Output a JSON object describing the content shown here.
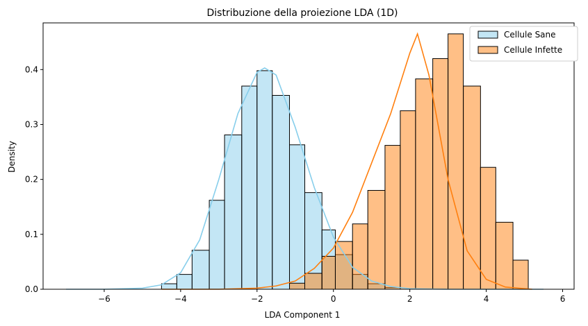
{
  "chart_data": {
    "type": "histogram",
    "title": "Distribuzione della proiezione LDA (1D)",
    "xlabel": "LDA Component 1",
    "ylabel": "Density",
    "xlim": [
      -7.6,
      6.3
    ],
    "ylim": [
      0,
      0.485
    ],
    "xticks": [
      -6,
      -4,
      -2,
      0,
      2,
      4,
      6
    ],
    "xtick_labels": [
      "−6",
      "−4",
      "−2",
      "0",
      "2",
      "4",
      "6"
    ],
    "yticks": [
      0.0,
      0.1,
      0.2,
      0.3,
      0.4
    ],
    "ytick_labels": [
      "0.0",
      "0.1",
      "0.2",
      "0.3",
      "0.4"
    ],
    "legend_position": "top-right",
    "grid": false,
    "series": [
      {
        "name": "Cellule Sane",
        "fill": "#87CEEB",
        "line": "#87CEEB",
        "bins": [
          [
            -4.5,
            -4.1,
            0.01
          ],
          [
            -4.1,
            -3.7,
            0.027
          ],
          [
            -3.7,
            -3.25,
            0.071
          ],
          [
            -3.25,
            -2.85,
            0.162
          ],
          [
            -2.85,
            -2.4,
            0.281
          ],
          [
            -2.4,
            -2.0,
            0.37
          ],
          [
            -2.0,
            -1.6,
            0.398
          ],
          [
            -1.6,
            -1.15,
            0.353
          ],
          [
            -1.15,
            -0.75,
            0.263
          ],
          [
            -0.75,
            -0.3,
            0.176
          ],
          [
            -0.3,
            0.05,
            0.108
          ],
          [
            0.05,
            0.5,
            0.063
          ],
          [
            0.5,
            0.9,
            0.027
          ],
          [
            0.9,
            1.35,
            0.01
          ],
          [
            1.35,
            1.75,
            0.003
          ]
        ],
        "kde": [
          [
            -7.0,
            0.0
          ],
          [
            -6.0,
            0.0
          ],
          [
            -5.0,
            0.002
          ],
          [
            -4.5,
            0.008
          ],
          [
            -4.0,
            0.03
          ],
          [
            -3.5,
            0.09
          ],
          [
            -3.0,
            0.2
          ],
          [
            -2.5,
            0.32
          ],
          [
            -2.0,
            0.395
          ],
          [
            -1.8,
            0.403
          ],
          [
            -1.5,
            0.39
          ],
          [
            -1.0,
            0.295
          ],
          [
            -0.5,
            0.185
          ],
          [
            0.0,
            0.095
          ],
          [
            0.5,
            0.04
          ],
          [
            1.0,
            0.015
          ],
          [
            1.5,
            0.005
          ],
          [
            2.0,
            0.001
          ],
          [
            3.0,
            0.0
          ],
          [
            4.0,
            0.0
          ],
          [
            5.5,
            0.0
          ]
        ]
      },
      {
        "name": "Cellule Infette",
        "fill": "#FF7F0E",
        "line": "#FF7F0E",
        "bins": [
          [
            -1.15,
            -0.75,
            0.011
          ],
          [
            -0.75,
            -0.3,
            0.029
          ],
          [
            -0.3,
            0.05,
            0.06
          ],
          [
            0.05,
            0.5,
            0.087
          ],
          [
            0.5,
            0.9,
            0.119
          ],
          [
            0.9,
            1.35,
            0.18
          ],
          [
            1.35,
            1.75,
            0.262
          ],
          [
            1.75,
            2.15,
            0.325
          ],
          [
            2.15,
            2.6,
            0.383
          ],
          [
            2.6,
            3.0,
            0.42
          ],
          [
            3.0,
            3.4,
            0.465
          ],
          [
            3.4,
            3.85,
            0.37
          ],
          [
            3.85,
            4.25,
            0.222
          ],
          [
            4.25,
            4.7,
            0.122
          ],
          [
            4.7,
            5.1,
            0.053
          ]
        ],
        "kde": [
          [
            -4.5,
            0.0
          ],
          [
            -3.0,
            0.0
          ],
          [
            -2.0,
            0.002
          ],
          [
            -1.5,
            0.006
          ],
          [
            -1.0,
            0.015
          ],
          [
            -0.5,
            0.038
          ],
          [
            0.0,
            0.075
          ],
          [
            0.5,
            0.14
          ],
          [
            1.0,
            0.23
          ],
          [
            1.5,
            0.32
          ],
          [
            2.0,
            0.43
          ],
          [
            2.2,
            0.465
          ],
          [
            2.5,
            0.39
          ],
          [
            3.0,
            0.2
          ],
          [
            3.5,
            0.07
          ],
          [
            4.0,
            0.018
          ],
          [
            4.5,
            0.004
          ],
          [
            5.0,
            0.001
          ],
          [
            5.2,
            0.0
          ]
        ]
      }
    ]
  }
}
